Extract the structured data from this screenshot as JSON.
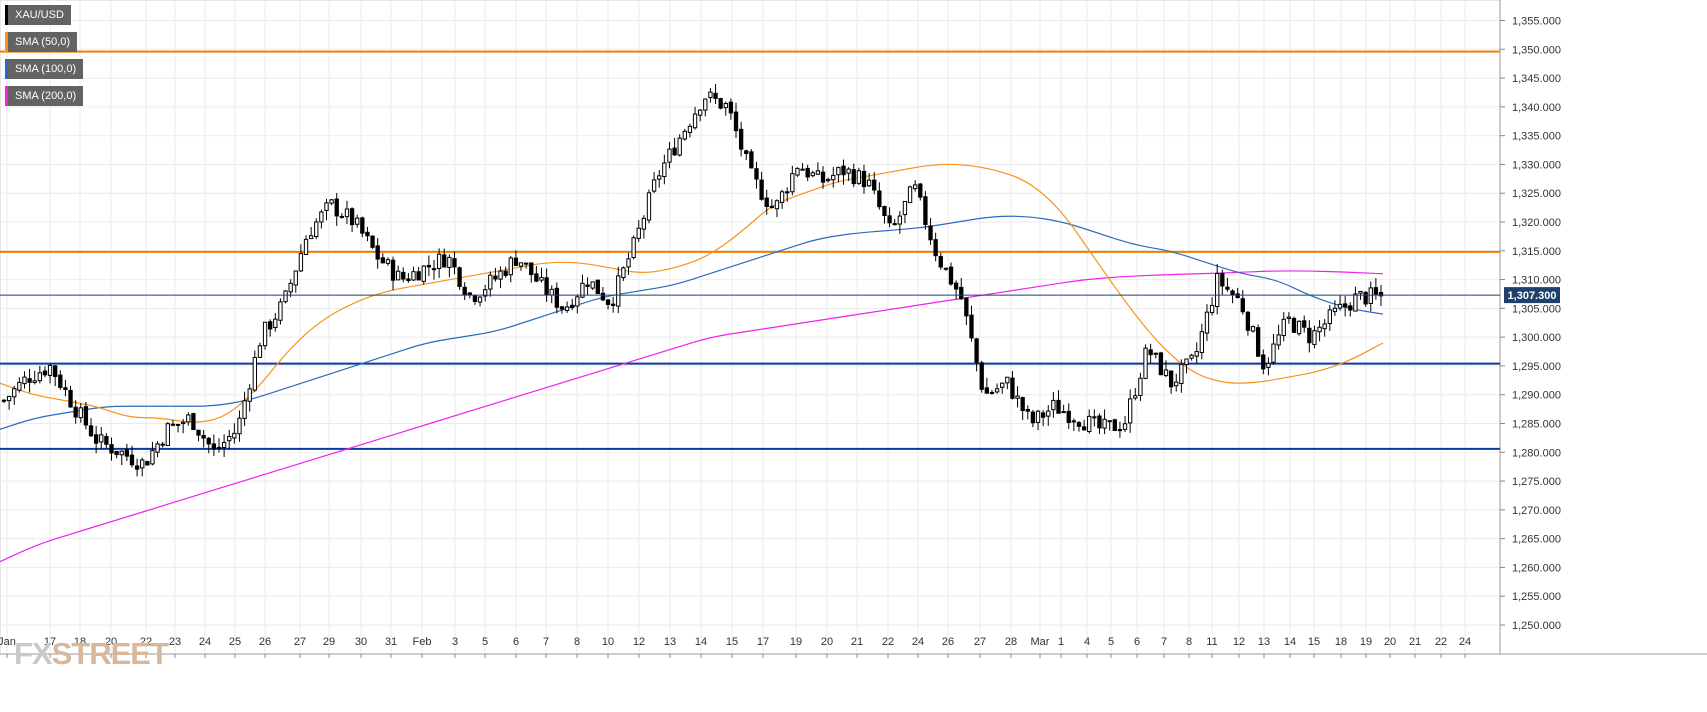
{
  "colors": {
    "bull": "#ffffff",
    "bear": "#000000",
    "sma50": "#f7931a",
    "sma100": "#2a6bbf",
    "sma200": "#ee22ee",
    "resistance": "#f07d00",
    "support": "#0b3a9e",
    "current_price_line": "#1f3f6d",
    "price_tag": "#1f3f6d",
    "grid": "#ebebeb"
  },
  "legend": [
    {
      "label": "XAU/USD",
      "color": "#000000"
    },
    {
      "label": "SMA (50,0)",
      "color": "#f7931a"
    },
    {
      "label": "SMA (100,0)",
      "color": "#2a6bbf"
    },
    {
      "label": "SMA (200,0)",
      "color": "#ee22ee"
    }
  ],
  "logo": {
    "fx": "FX",
    "rest": "STREET"
  },
  "chart_data": {
    "type": "candlestick",
    "symbol": "XAU/USD",
    "current_price": 1307.3,
    "current_price_label": "1,307.300",
    "ylim": [
      1248,
      1359
    ],
    "y_ticks": [
      1250,
      1255,
      1260,
      1265,
      1270,
      1275,
      1280,
      1285,
      1290,
      1295,
      1300,
      1305,
      1310,
      1315,
      1320,
      1325,
      1330,
      1335,
      1340,
      1345,
      1350,
      1355
    ],
    "y_tick_labels": [
      "1,250.000",
      "1,255.000",
      "1,260.000",
      "1,265.000",
      "1,270.000",
      "1,275.000",
      "1,280.000",
      "1,285.000",
      "1,290.000",
      "1,295.000",
      "1,300.000",
      "1,305.000",
      "1,310.000",
      "1,315.000",
      "1,320.000",
      "1,325.000",
      "1,330.000",
      "1,335.000",
      "1,340.000",
      "1,345.000",
      "1,350.000",
      "1,355.000"
    ],
    "x_labels": [
      "Jan",
      "17",
      "18",
      "20",
      "22",
      "23",
      "24",
      "25",
      "26",
      "27",
      "29",
      "30",
      "31",
      "Feb",
      "3",
      "5",
      "6",
      "7",
      "8",
      "10",
      "12",
      "13",
      "14",
      "15",
      "17",
      "19",
      "20",
      "21",
      "22",
      "24",
      "26",
      "27",
      "28",
      "Mar",
      "1",
      "4",
      "5",
      "6",
      "7",
      "8",
      "11",
      "12",
      "13",
      "14",
      "15",
      "18",
      "19",
      "20",
      "21",
      "22",
      "24"
    ],
    "horizontal_levels": [
      {
        "value": 1349.6,
        "kind": "resistance"
      },
      {
        "value": 1314.8,
        "kind": "resistance"
      },
      {
        "value": 1295.4,
        "kind": "support"
      },
      {
        "value": 1280.6,
        "kind": "support"
      }
    ],
    "grid": true,
    "legend_position": "top-left",
    "close_path": [
      1289,
      1293,
      1295,
      1288,
      1282,
      1280,
      1278,
      1284,
      1286,
      1280,
      1284,
      1300,
      1306,
      1318,
      1323,
      1320,
      1314,
      1310,
      1312,
      1314,
      1307,
      1310,
      1314,
      1309,
      1305,
      1310,
      1306,
      1316,
      1328,
      1335,
      1342,
      1340,
      1328,
      1322,
      1330,
      1327,
      1329,
      1327,
      1318,
      1326,
      1314,
      1307,
      1290,
      1292,
      1285,
      1288,
      1286,
      1284,
      1285,
      1298,
      1292,
      1296,
      1310,
      1306,
      1295,
      1303,
      1300,
      1304,
      1307,
      1307
    ],
    "sma50_path": [
      1292,
      1290,
      1289,
      1288,
      1286,
      1286,
      1285,
      1286,
      1291,
      1298,
      1303,
      1306,
      1308,
      1309,
      1310,
      1311,
      1312,
      1313,
      1313,
      1312,
      1311,
      1312,
      1314,
      1318,
      1323,
      1325,
      1327,
      1328,
      1329,
      1330,
      1330,
      1329,
      1327,
      1322,
      1314,
      1306,
      1299,
      1294,
      1292,
      1292,
      1293,
      1294,
      1296,
      1299
    ],
    "sma100_path": [
      1284,
      1286,
      1287,
      1288,
      1288,
      1288,
      1288,
      1289,
      1291,
      1293,
      1295,
      1297,
      1299,
      1300,
      1301,
      1303,
      1305,
      1307,
      1308,
      1309,
      1311,
      1313,
      1315,
      1317,
      1318,
      1318.5,
      1319,
      1320,
      1321,
      1321,
      1320,
      1318,
      1316,
      1315,
      1313,
      1311,
      1310,
      1307,
      1305,
      1304
    ],
    "sma200_path": [
      1261,
      1264,
      1266,
      1268,
      1270,
      1272,
      1274,
      1276,
      1278,
      1280,
      1282,
      1284,
      1286,
      1288,
      1290,
      1292,
      1294,
      1296,
      1298,
      1300,
      1301,
      1302,
      1303,
      1304,
      1305,
      1306,
      1307,
      1308,
      1309,
      1310,
      1310.5,
      1310.8,
      1311,
      1311.2,
      1311.5,
      1311.5,
      1311.3,
      1311
    ]
  }
}
